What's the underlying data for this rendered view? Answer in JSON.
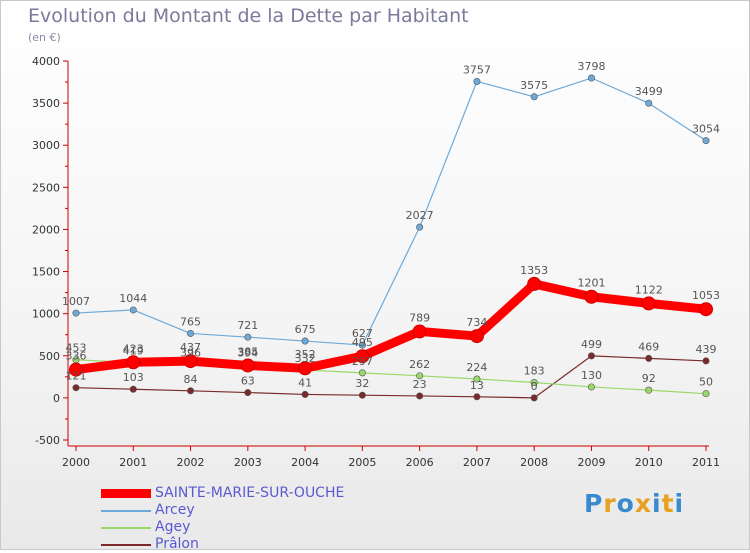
{
  "header": {
    "title": "Evolution du Montant de la Dette par Habitant",
    "subtitle": "(en €)"
  },
  "logo": {
    "text": "Proxiti"
  },
  "colors": {
    "sainte": "#ff0000",
    "arcey": "#6ea9d8",
    "agey": "#9ad86a",
    "pralon": "#7a2a2a",
    "axis": "#cc0000"
  },
  "chart_data": {
    "type": "line",
    "x": [
      "2000",
      "2001",
      "2002",
      "2003",
      "2004",
      "2005",
      "2006",
      "2007",
      "2008",
      "2009",
      "2010",
      "2011"
    ],
    "ylim": [
      -500,
      4000
    ],
    "yticks": [
      -500,
      0,
      500,
      1000,
      1500,
      2000,
      2500,
      3000,
      3500,
      4000
    ],
    "grid": false,
    "legend_position": "bottom-left",
    "series": [
      {
        "name": "SAINTE-MARIE-SUR-OUCHE",
        "values": [
          336,
          423,
          437,
          385,
          352,
          495,
          789,
          734,
          1353,
          1201,
          1122,
          1053
        ],
        "labels": [
          "336",
          "423",
          "437",
          "385",
          "352",
          "495",
          "789",
          "734",
          "1353",
          "1201",
          "1122",
          "1053"
        ]
      },
      {
        "name": "Arcey",
        "values": [
          1007,
          1044,
          765,
          721,
          675,
          627,
          2027,
          3757,
          3575,
          3798,
          3499,
          3054
        ],
        "labels": [
          "1007",
          "1044",
          "765",
          "721",
          "675",
          "627",
          "2027",
          "3757",
          "3575",
          "3798",
          "3499",
          "3054"
        ]
      },
      {
        "name": "Agey",
        "values": [
          453,
          419,
          396,
          394,
          332,
          297,
          262,
          224,
          183,
          130,
          92,
          50
        ],
        "labels": [
          "453",
          "419",
          "396",
          "394",
          "332",
          "297",
          "262",
          "224",
          "183",
          "130",
          "92",
          "50"
        ]
      },
      {
        "name": "Prâlon",
        "values": [
          121,
          103,
          84,
          63,
          41,
          32,
          23,
          13,
          0,
          499,
          469,
          439
        ],
        "labels": [
          "121",
          "103",
          "84",
          "63",
          "41",
          "32",
          "23",
          "13",
          "0",
          "499",
          "469",
          "439"
        ]
      }
    ]
  }
}
